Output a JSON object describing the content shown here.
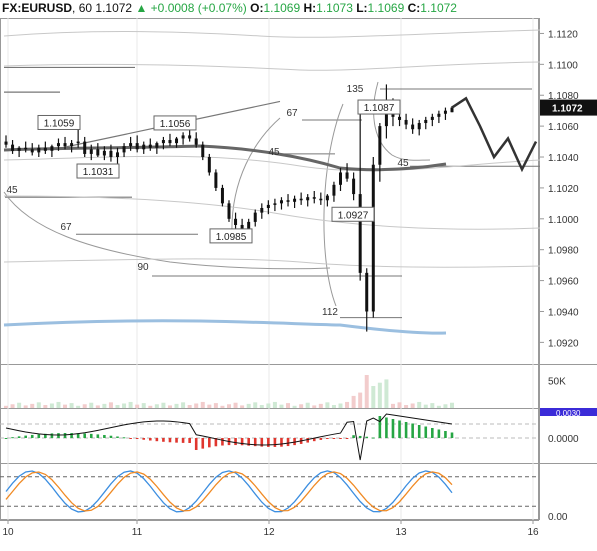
{
  "header": {
    "symbol": "FX:EURUSD",
    "interval": "60",
    "last": "1.1072",
    "change": "+0.0008",
    "change_pct": "(+0.07%)",
    "o_label": "O:",
    "open": "1.1069",
    "h_label": "H:",
    "high": "1.1073",
    "l_label": "L:",
    "low": "1.1069",
    "c_label": "C:",
    "close": "1.1072"
  },
  "colors": {
    "up": "#26a644",
    "down": "#e0362e",
    "candle": "#111111",
    "ma_grey": "#666666",
    "ma_blue": "#9bbfe0",
    "envelope": "#c8c8c8",
    "stoch_k": "#3c8ee0",
    "stoch_d": "#f08a24",
    "macd_badge": "#3b2bd8"
  },
  "chart_data": [
    {
      "type": "line",
      "panel": "price",
      "title": "",
      "xlabel": "",
      "ylabel": "",
      "x_ticks": [
        "10",
        "11",
        "12",
        "13",
        "16"
      ],
      "y_ticks": [
        "1.0920",
        "1.0940",
        "1.0960",
        "1.0980",
        "1.1000",
        "1.1020",
        "1.1040",
        "1.1060",
        "1.1080",
        "1.1100",
        "1.1120"
      ],
      "ylim": [
        1.0906,
        1.113
      ],
      "last_price_label": "1.1072",
      "price_labels": [
        {
          "x": 59,
          "value": "1.1059"
        },
        {
          "x": 175,
          "value": "1.1056"
        },
        {
          "x": 98,
          "value": "1.1031"
        },
        {
          "x": 231,
          "value": "1.0985"
        },
        {
          "x": 353,
          "value": "1.0927"
        },
        {
          "x": 379,
          "value": "1.1087"
        }
      ],
      "fib_labels": [
        "135",
        "67",
        "45",
        "45",
        "67",
        "90",
        "112"
      ],
      "candles": [
        [
          1.105,
          1.1054,
          1.1046,
          1.1048
        ],
        [
          1.1048,
          1.1051,
          1.1042,
          1.1044
        ],
        [
          1.1044,
          1.1047,
          1.104,
          1.1046
        ],
        [
          1.1046,
          1.105,
          1.1043,
          1.1045
        ],
        [
          1.1045,
          1.1049,
          1.1041,
          1.1043
        ],
        [
          1.1043,
          1.1048,
          1.104,
          1.1046
        ],
        [
          1.1046,
          1.105,
          1.1042,
          1.1044
        ],
        [
          1.1044,
          1.1048,
          1.104,
          1.1047
        ],
        [
          1.1047,
          1.1052,
          1.1044,
          1.1049
        ],
        [
          1.1049,
          1.1053,
          1.1045,
          1.1047
        ],
        [
          1.1047,
          1.1051,
          1.1043,
          1.1049
        ],
        [
          1.1049,
          1.1061,
          1.1046,
          1.105
        ],
        [
          1.105,
          1.1053,
          1.104,
          1.1042
        ],
        [
          1.1042,
          1.1048,
          1.1038,
          1.1045
        ],
        [
          1.1045,
          1.1049,
          1.104,
          1.1041
        ],
        [
          1.1041,
          1.1047,
          1.1038,
          1.1044
        ],
        [
          1.1044,
          1.1048,
          1.1037,
          1.104
        ],
        [
          1.104,
          1.1046,
          1.1031,
          1.1043
        ],
        [
          1.1043,
          1.1049,
          1.104,
          1.1047
        ],
        [
          1.1047,
          1.1053,
          1.1044,
          1.1049
        ],
        [
          1.1049,
          1.1054,
          1.1043,
          1.1045
        ],
        [
          1.1045,
          1.105,
          1.1042,
          1.1048
        ],
        [
          1.1048,
          1.1052,
          1.1044,
          1.1046
        ],
        [
          1.1046,
          1.105,
          1.1042,
          1.1049
        ],
        [
          1.1049,
          1.1053,
          1.1045,
          1.1051
        ],
        [
          1.1051,
          1.1055,
          1.1047,
          1.1049
        ],
        [
          1.1049,
          1.1053,
          1.1046,
          1.1052
        ],
        [
          1.1052,
          1.1056,
          1.1048,
          1.1054
        ],
        [
          1.1054,
          1.1058,
          1.105,
          1.1052
        ],
        [
          1.1052,
          1.1056,
          1.1046,
          1.1048
        ],
        [
          1.1048,
          1.105,
          1.1038,
          1.104
        ],
        [
          1.104,
          1.1042,
          1.1028,
          1.103
        ],
        [
          1.103,
          1.1032,
          1.1018,
          1.102
        ],
        [
          1.102,
          1.1022,
          1.1008,
          1.101
        ],
        [
          1.101,
          1.1012,
          1.0998,
          1.1
        ],
        [
          1.1,
          1.1004,
          1.0992,
          1.0996
        ],
        [
          1.0996,
          1.1,
          1.0985,
          1.0992
        ],
        [
          1.0992,
          1.1,
          1.0988,
          1.0998
        ],
        [
          1.0998,
          1.1006,
          1.0995,
          1.1004
        ],
        [
          1.1004,
          1.101,
          1.1,
          1.1007
        ],
        [
          1.1007,
          1.1012,
          1.1003,
          1.1009
        ],
        [
          1.1009,
          1.1013,
          1.1005,
          1.101
        ],
        [
          1.101,
          1.1014,
          1.1006,
          1.1012
        ],
        [
          1.1012,
          1.1016,
          1.1008,
          1.1011
        ],
        [
          1.1011,
          1.1015,
          1.1007,
          1.1013
        ],
        [
          1.1013,
          1.1017,
          1.1009,
          1.1012
        ],
        [
          1.1012,
          1.1016,
          1.1008,
          1.1014
        ],
        [
          1.1014,
          1.1018,
          1.101,
          1.1013
        ],
        [
          1.1013,
          1.1017,
          1.1009,
          1.1012
        ],
        [
          1.1012,
          1.1016,
          1.1008,
          1.1015
        ],
        [
          1.1015,
          1.1024,
          1.1011,
          1.1022
        ],
        [
          1.1022,
          1.1033,
          1.1018,
          1.103
        ],
        [
          1.103,
          1.1036,
          1.1024,
          1.1026
        ],
        [
          1.1026,
          1.103,
          1.1012,
          1.1016
        ],
        [
          1.1016,
          1.1068,
          1.096,
          1.0965
        ],
        [
          1.0965,
          1.0968,
          1.0927,
          1.094
        ],
        [
          1.094,
          1.104,
          1.0936,
          1.1035
        ],
        [
          1.1035,
          1.1062,
          1.1024,
          1.106
        ],
        [
          1.106,
          1.1087,
          1.1052,
          1.1072
        ],
        [
          1.1072,
          1.1078,
          1.106,
          1.1066
        ],
        [
          1.1066,
          1.1072,
          1.106,
          1.1064
        ],
        [
          1.1064,
          1.1068,
          1.1058,
          1.1061
        ],
        [
          1.1061,
          1.1065,
          1.1055,
          1.1058
        ],
        [
          1.1058,
          1.1064,
          1.1054,
          1.1062
        ],
        [
          1.1062,
          1.1066,
          1.1058,
          1.1064
        ],
        [
          1.1064,
          1.1068,
          1.106,
          1.1066
        ],
        [
          1.1066,
          1.107,
          1.1062,
          1.1068
        ],
        [
          1.1068,
          1.1072,
          1.1064,
          1.107
        ],
        [
          1.1069,
          1.1073,
          1.1069,
          1.1072
        ]
      ],
      "projection": [
        1.1072,
        1.1078,
        1.106,
        1.104,
        1.1052,
        1.1032,
        1.105
      ]
    },
    {
      "type": "bar",
      "panel": "volume",
      "y_ticks": [
        "50K"
      ],
      "ylim": [
        0,
        80000
      ]
    },
    {
      "type": "bar",
      "panel": "macd",
      "y_ticks": [
        "0.0000"
      ],
      "badge_value": "0.0030"
    },
    {
      "type": "line",
      "panel": "stochastic",
      "y_ticks": [
        "0.00"
      ],
      "ylim": [
        0,
        100
      ],
      "levels": [
        20,
        80
      ]
    }
  ]
}
